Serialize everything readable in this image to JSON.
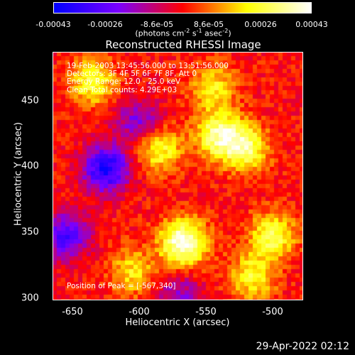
{
  "chart_data": {
    "type": "heatmap",
    "title": "Reconstructed RHESSI Image",
    "xlabel": "Heliocentric X (arcsec)",
    "ylabel": "Heliocentric Y (arcsec)",
    "xlim": [
      -665,
      -477
    ],
    "ylim": [
      297,
      482
    ],
    "x_ticks": [
      -650,
      -600,
      -550,
      -500
    ],
    "y_ticks": [
      300,
      350,
      400,
      450
    ],
    "colorbar": {
      "range": [
        -0.00043,
        0.00043
      ],
      "ticks": [
        "-0.00043",
        "-0.00026",
        "-8.6e-05",
        "8.6e-05",
        "0.00026",
        "0.00043"
      ],
      "unit_label": "(photons cm",
      "unit_parts": [
        "(photons cm",
        "-2",
        " s",
        "-1",
        " asec",
        "-2",
        ")"
      ],
      "colors": [
        "#0000ff",
        "#7a00ff",
        "#ff0000",
        "#ffff00",
        "#ffffff"
      ]
    },
    "annotations": [
      "19-Feb-2003 13:45:56.000 to 13:51:56.000",
      "Detectors: 3F 4F 5F 6F 7F 8F, Att 0",
      "Energy Range: 12.0 - 25.0 keV",
      "Clean     Total counts: 4.29E+03"
    ],
    "peak_label": "Position of Peak = [-567,340]",
    "peak_position": [
      -567,
      340
    ],
    "bright_sources": [
      {
        "x": -567,
        "y": 340,
        "value": 0.00043
      },
      {
        "x": -540,
        "y": 420,
        "value": 0.00034
      },
      {
        "x": -520,
        "y": 410,
        "value": 0.0003
      },
      {
        "x": -585,
        "y": 410,
        "value": 0.00026
      },
      {
        "x": -500,
        "y": 345,
        "value": 0.00028
      },
      {
        "x": -635,
        "y": 460,
        "value": 0.00026
      },
      {
        "x": -515,
        "y": 315,
        "value": 0.00024
      },
      {
        "x": -605,
        "y": 318,
        "value": 0.0002
      },
      {
        "x": -545,
        "y": 455,
        "value": 0.00022
      }
    ],
    "dark_sources": [
      {
        "x": -625,
        "y": 395,
        "value": -0.0004
      },
      {
        "x": -655,
        "y": 345,
        "value": -0.0003
      },
      {
        "x": -600,
        "y": 430,
        "value": -0.00022
      },
      {
        "x": -570,
        "y": 300,
        "value": -0.00018
      }
    ]
  },
  "timestamp": "29-Apr-2022 02:12"
}
